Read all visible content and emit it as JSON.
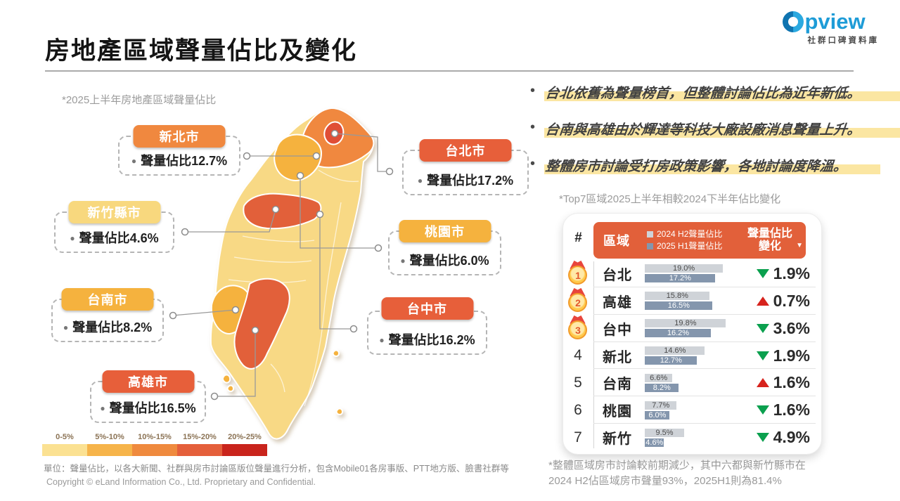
{
  "colors": {
    "brand": "#1E9CD7",
    "table_header": "#E2603A",
    "highlight": "#FBE6A2",
    "up": "#D7231D",
    "down": "#0AA04E"
  },
  "brand": {
    "logo_text": "pview",
    "tagline": "社群口碑資料庫"
  },
  "header": {
    "title": "房地產區域聲量佔比及變化"
  },
  "map_section": {
    "subtitle": "*2025上半年房地產區域聲量佔比",
    "callouts": [
      {
        "name": "新北市",
        "value": "聲量佔比12.7%",
        "badge_color": "#F0883F"
      },
      {
        "name": "台北市",
        "value": "聲量佔比17.2%",
        "badge_color": "#E75F3A"
      },
      {
        "name": "新竹縣市",
        "value": "聲量佔比4.6%",
        "badge_color": "#F8D87E"
      },
      {
        "name": "桃園市",
        "value": "聲量佔比6.0%",
        "badge_color": "#F5B23E"
      },
      {
        "name": "台南市",
        "value": "聲量佔比8.2%",
        "badge_color": "#F5B23E"
      },
      {
        "name": "台中市",
        "value": "聲量佔比16.2%",
        "badge_color": "#E75F3A"
      },
      {
        "name": "高雄市",
        "value": "聲量佔比16.5%",
        "badge_color": "#E75F3A"
      }
    ],
    "legend": [
      {
        "label": "0-5%",
        "color": "#FBE192"
      },
      {
        "label": "5%-10%",
        "color": "#F6B44A"
      },
      {
        "label": "10%-15%",
        "color": "#EF8A3E"
      },
      {
        "label": "15%-20%",
        "color": "#E45F3B"
      },
      {
        "label": "20%-25%",
        "color": "#C9241C"
      }
    ]
  },
  "insights": [
    "台北依舊為聲量榜首，但整體討論佔比為近年新低。",
    "台南與高雄由於輝達等科技大廠設廠消息聲量上升。",
    "整體房市討論受打房政策影響，各地討論度降溫。"
  ],
  "table": {
    "title": "*Top7區域2025上半年相較2024下半年佔比變化",
    "rank_header": "#",
    "region_header": "區域",
    "series_legend": [
      {
        "label": "2024 H2聲量佔比",
        "color": "#CFD3D8"
      },
      {
        "label": "2025 H1聲量佔比",
        "color": "#8496AD"
      }
    ],
    "change_header_line1": "聲量佔比",
    "change_header_line2": "變化",
    "sort_icon": "▼",
    "rows": [
      {
        "rank": 1,
        "medal": true,
        "region": "台北",
        "v2024": 19.0,
        "v2024_label": "19.0%",
        "v2025": 17.2,
        "v2025_label": "17.2%",
        "change": "1.9%",
        "direction": "down"
      },
      {
        "rank": 2,
        "medal": true,
        "region": "高雄",
        "v2024": 15.8,
        "v2024_label": "15.8%",
        "v2025": 16.5,
        "v2025_label": "16.5%",
        "change": "0.7%",
        "direction": "up"
      },
      {
        "rank": 3,
        "medal": true,
        "region": "台中",
        "v2024": 19.8,
        "v2024_label": "19.8%",
        "v2025": 16.2,
        "v2025_label": "16.2%",
        "change": "3.6%",
        "direction": "down"
      },
      {
        "rank": 4,
        "medal": false,
        "region": "新北",
        "v2024": 14.6,
        "v2024_label": "14.6%",
        "v2025": 12.7,
        "v2025_label": "12.7%",
        "change": "1.9%",
        "direction": "down"
      },
      {
        "rank": 5,
        "medal": false,
        "region": "台南",
        "v2024": 6.6,
        "v2024_label": "6.6%",
        "v2025": 8.2,
        "v2025_label": "8.2%",
        "change": "1.6%",
        "direction": "up"
      },
      {
        "rank": 6,
        "medal": false,
        "region": "桃園",
        "v2024": 7.7,
        "v2024_label": "7.7%",
        "v2025": 6.0,
        "v2025_label": "6.0%",
        "change": "1.6%",
        "direction": "down"
      },
      {
        "rank": 7,
        "medal": false,
        "region": "新竹",
        "v2024": 9.5,
        "v2024_label": "9.5%",
        "v2025": 4.6,
        "v2025_label": "4.6%",
        "change": "4.9%",
        "direction": "down"
      }
    ]
  },
  "footnotes": {
    "left_line1": "單位：聲量佔比，以各大新聞、社群與房市討論區版位聲量進行分析，包含Mobile01各房事版、PTT地方版、臉書社群等",
    "left_line2": "Copyright © eLand Information Co., Ltd. Proprietary and Confidential.",
    "right_line1": "*整體區域房市討論較前期減少，其中六都與新竹縣市在",
    "right_line2": "2024 H2佔區域房市聲量93%，2025H1則為81.4%"
  },
  "chart_data": [
    {
      "type": "heatmap",
      "subtype": "choropleth-taiwan-map",
      "title": "2025上半年房地產區域聲量佔比",
      "regions": [
        "台北市",
        "新北市",
        "桃園市",
        "新竹縣市",
        "台中市",
        "台南市",
        "高雄市"
      ],
      "values": [
        17.2,
        12.7,
        6.0,
        4.6,
        16.2,
        8.2,
        16.5
      ],
      "unit": "%",
      "legend_bins": [
        "0-5%",
        "5%-10%",
        "10%-15%",
        "15%-20%",
        "20%-25%"
      ],
      "legend_colors": [
        "#FBE192",
        "#F6B44A",
        "#EF8A3E",
        "#E45F3B",
        "#C9241C"
      ],
      "legend_position": "bottom-left"
    },
    {
      "type": "bar",
      "orientation": "horizontal",
      "title": "Top7區域2025上半年相較2024下半年佔比變化",
      "categories": [
        "台北",
        "高雄",
        "台中",
        "新北",
        "台南",
        "桃園",
        "新竹"
      ],
      "series": [
        {
          "name": "2024 H2聲量佔比",
          "values": [
            19.0,
            15.8,
            19.8,
            14.6,
            6.6,
            7.7,
            9.5
          ]
        },
        {
          "name": "2025 H1聲量佔比",
          "values": [
            17.2,
            16.5,
            16.2,
            12.7,
            8.2,
            6.0,
            4.6
          ]
        }
      ],
      "change_pct": [
        -1.9,
        0.7,
        -3.6,
        -1.9,
        1.6,
        -1.6,
        -4.9
      ],
      "xlim": [
        0,
        22
      ],
      "grid": false,
      "legend_position": "header"
    }
  ]
}
